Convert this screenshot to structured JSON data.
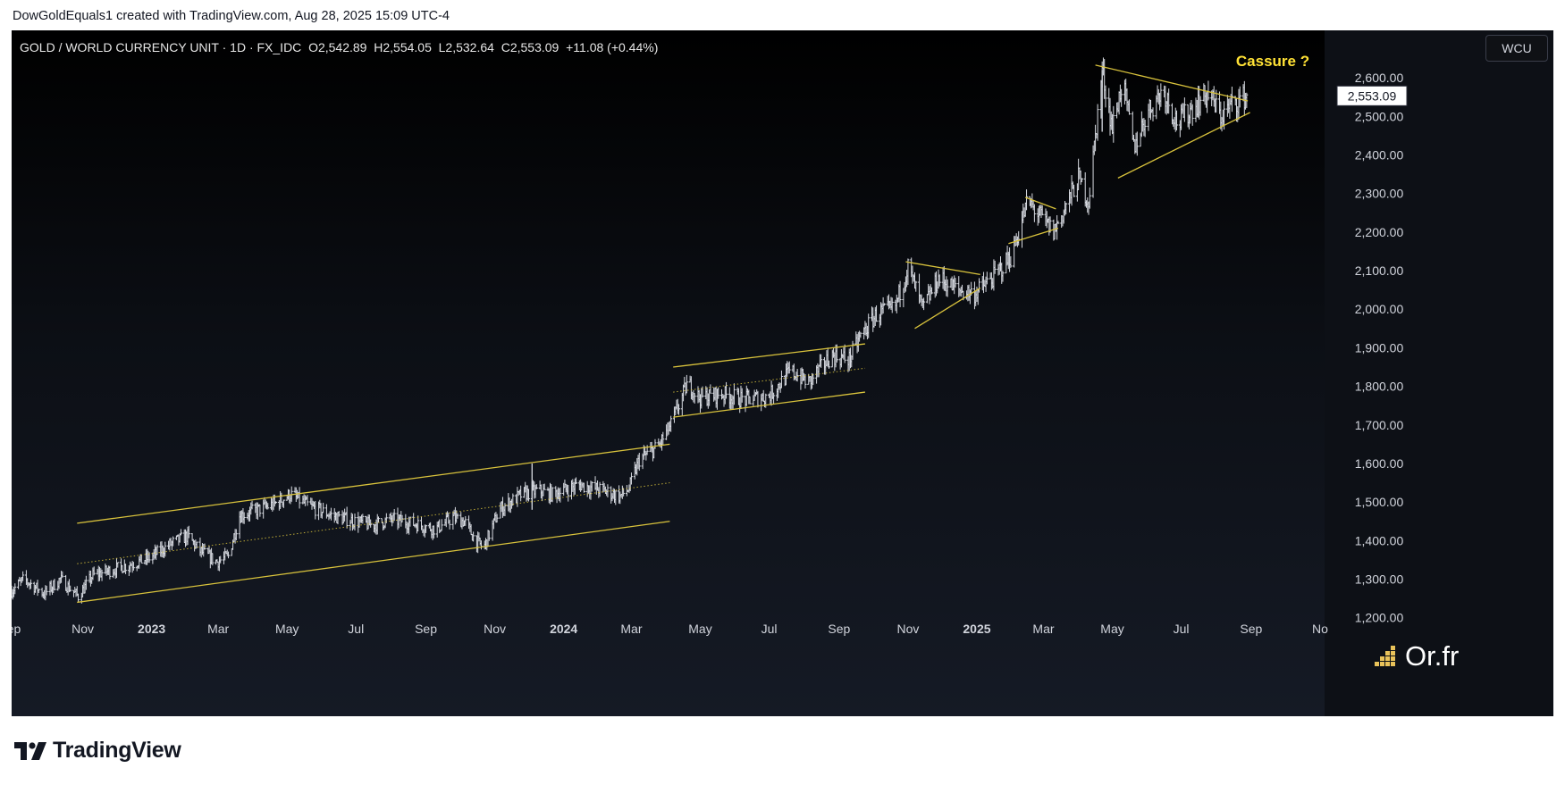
{
  "header": {
    "credit": "DowGoldEquals1 created with TradingView.com, Aug 28, 2025 15:09 UTC-4"
  },
  "symbol": {
    "name": "GOLD / WORLD CURRENCY UNIT · 1D · FX_IDC",
    "open": "O2,542.89",
    "high": "H2,554.05",
    "low": "L2,532.64",
    "close": "C2,553.09",
    "change": "+11.08 (+0.44%)"
  },
  "currency_button": "WCU",
  "annotation": "Cassure ?",
  "watermark": "Or.fr",
  "brand": "TradingView",
  "colors": {
    "trendlines": "#d8c23c",
    "bars": "#d8dbe2",
    "annotation": "#ffe135",
    "background": "#0c0f15"
  },
  "chart_data": {
    "type": "ohlc",
    "title": "GOLD / WORLD CURRENCY UNIT · 1D · FX_IDC",
    "x_ticks": [
      {
        "date": "2022-09-01",
        "label": "ep"
      },
      {
        "date": "2022-11-01",
        "label": "Nov"
      },
      {
        "date": "2023-01-01",
        "label": "2023"
      },
      {
        "date": "2023-03-01",
        "label": "Mar"
      },
      {
        "date": "2023-05-01",
        "label": "May"
      },
      {
        "date": "2023-07-01",
        "label": "Jul"
      },
      {
        "date": "2023-09-01",
        "label": "Sep"
      },
      {
        "date": "2023-11-01",
        "label": "Nov"
      },
      {
        "date": "2024-01-01",
        "label": "2024"
      },
      {
        "date": "2024-03-01",
        "label": "Mar"
      },
      {
        "date": "2024-05-01",
        "label": "May"
      },
      {
        "date": "2024-07-01",
        "label": "Jul"
      },
      {
        "date": "2024-09-01",
        "label": "Sep"
      },
      {
        "date": "2024-11-01",
        "label": "Nov"
      },
      {
        "date": "2025-01-01",
        "label": "2025"
      },
      {
        "date": "2025-03-01",
        "label": "Mar"
      },
      {
        "date": "2025-05-01",
        "label": "May"
      },
      {
        "date": "2025-07-01",
        "label": "Jul"
      },
      {
        "date": "2025-09-01",
        "label": "Sep"
      },
      {
        "date": "2025-11-01",
        "label": "No"
      }
    ],
    "y_ticks": [
      "1,200.00",
      "1,300.00",
      "1,400.00",
      "1,500.00",
      "1,600.00",
      "1,700.00",
      "1,800.00",
      "1,900.00",
      "2,000.00",
      "2,100.00",
      "2,200.00",
      "2,300.00",
      "2,400.00",
      "2,500.00",
      "2,600.00"
    ],
    "ylim": [
      1160,
      2665
    ],
    "xlim": [
      "2022-08-30",
      "2025-11-05"
    ],
    "last_price_label": "2,553.09",
    "last_price": 2553.09,
    "price_path": [
      [
        "2022-08-30",
        1270
      ],
      [
        "2022-09-10",
        1300
      ],
      [
        "2022-09-28",
        1262
      ],
      [
        "2022-10-12",
        1300
      ],
      [
        "2022-10-28",
        1255
      ],
      [
        "2022-11-10",
        1310
      ],
      [
        "2022-11-28",
        1325
      ],
      [
        "2022-12-15",
        1340
      ],
      [
        "2022-12-30",
        1355
      ],
      [
        "2023-01-20",
        1395
      ],
      [
        "2023-02-02",
        1412
      ],
      [
        "2023-02-12",
        1375
      ],
      [
        "2023-02-28",
        1345
      ],
      [
        "2023-03-10",
        1360
      ],
      [
        "2023-03-20",
        1465
      ],
      [
        "2023-04-05",
        1480
      ],
      [
        "2023-04-20",
        1495
      ],
      [
        "2023-05-04",
        1520
      ],
      [
        "2023-05-20",
        1490
      ],
      [
        "2023-06-10",
        1465
      ],
      [
        "2023-06-30",
        1450
      ],
      [
        "2023-07-15",
        1440
      ],
      [
        "2023-08-01",
        1455
      ],
      [
        "2023-08-20",
        1445
      ],
      [
        "2023-09-10",
        1430
      ],
      [
        "2023-09-25",
        1460
      ],
      [
        "2023-10-05",
        1450
      ],
      [
        "2023-10-15",
        1400
      ],
      [
        "2023-10-22",
        1380
      ],
      [
        "2023-11-05",
        1480
      ],
      [
        "2023-11-25",
        1520
      ],
      [
        "2023-12-10",
        1530
      ],
      [
        "2023-12-22",
        1520
      ],
      [
        "2024-01-15",
        1545
      ],
      [
        "2024-02-05",
        1530
      ],
      [
        "2024-02-20",
        1515
      ],
      [
        "2024-02-28",
        1535
      ],
      [
        "2024-03-08",
        1610
      ],
      [
        "2024-03-25",
        1645
      ],
      [
        "2024-04-05",
        1700
      ],
      [
        "2024-04-20",
        1810
      ],
      [
        "2024-04-30",
        1770
      ],
      [
        "2024-05-20",
        1780
      ],
      [
        "2024-06-10",
        1765
      ],
      [
        "2024-07-01",
        1775
      ],
      [
        "2024-07-20",
        1840
      ],
      [
        "2024-08-05",
        1810
      ],
      [
        "2024-08-25",
        1880
      ],
      [
        "2024-09-10",
        1870
      ],
      [
        "2024-09-20",
        1930
      ],
      [
        "2024-10-05",
        1990
      ],
      [
        "2024-10-20",
        2000
      ],
      [
        "2024-11-01",
        2110
      ],
      [
        "2024-11-14",
        2000
      ],
      [
        "2024-11-28",
        2080
      ],
      [
        "2024-12-15",
        2050
      ],
      [
        "2024-12-30",
        2040
      ],
      [
        "2025-01-15",
        2080
      ],
      [
        "2025-02-01",
        2140
      ],
      [
        "2025-02-15",
        2280
      ],
      [
        "2025-03-01",
        2230
      ],
      [
        "2025-03-10",
        2200
      ],
      [
        "2025-03-20",
        2260
      ],
      [
        "2025-04-01",
        2340
      ],
      [
        "2025-04-10",
        2280
      ],
      [
        "2025-04-22",
        2620
      ],
      [
        "2025-05-01",
        2470
      ],
      [
        "2025-05-10",
        2590
      ],
      [
        "2025-05-20",
        2420
      ],
      [
        "2025-06-01",
        2510
      ],
      [
        "2025-06-15",
        2570
      ],
      [
        "2025-06-28",
        2480
      ],
      [
        "2025-07-10",
        2520
      ],
      [
        "2025-07-25",
        2560
      ],
      [
        "2025-08-05",
        2500
      ],
      [
        "2025-08-15",
        2530
      ],
      [
        "2025-08-28",
        2553
      ]
    ],
    "spikes": [
      [
        "2023-12-04",
        1600,
        1480
      ],
      [
        "2025-04-22",
        2620,
        2460
      ]
    ],
    "trendlines": [
      {
        "name": "channel-upper-1",
        "from": [
          "2022-10-27",
          1445
        ],
        "to": [
          "2024-04-04",
          1650
        ]
      },
      {
        "name": "channel-lower-1",
        "from": [
          "2022-10-27",
          1240
        ],
        "to": [
          "2024-04-04",
          1450
        ]
      },
      {
        "name": "channel-mid-1",
        "from": [
          "2022-10-27",
          1340
        ],
        "to": [
          "2024-04-04",
          1550
        ],
        "dotted": true
      },
      {
        "name": "channel-upper-2",
        "from": [
          "2024-04-07",
          1850
        ],
        "to": [
          "2024-09-24",
          1910
        ]
      },
      {
        "name": "channel-lower-2",
        "from": [
          "2024-04-07",
          1720
        ],
        "to": [
          "2024-09-24",
          1785
        ]
      },
      {
        "name": "channel-mid-2",
        "from": [
          "2024-04-07",
          1785
        ],
        "to": [
          "2024-09-24",
          1847
        ],
        "dotted": true
      },
      {
        "name": "triangle-1-upper",
        "from": [
          "2024-10-30",
          2123
        ],
        "to": [
          "2025-01-04",
          2090
        ]
      },
      {
        "name": "triangle-1-lower",
        "from": [
          "2024-11-07",
          1950
        ],
        "to": [
          "2025-01-04",
          2055
        ]
      },
      {
        "name": "triangle-2-upper",
        "from": [
          "2025-02-13",
          2290
        ],
        "to": [
          "2025-03-12",
          2260
        ]
      },
      {
        "name": "triangle-2-lower",
        "from": [
          "2025-01-29",
          2170
        ],
        "to": [
          "2025-03-14",
          2210
        ]
      },
      {
        "name": "triangle-3-upper",
        "from": [
          "2025-04-16",
          2633
        ],
        "to": [
          "2025-08-29",
          2540
        ]
      },
      {
        "name": "triangle-3-lower",
        "from": [
          "2025-05-06",
          2340
        ],
        "to": [
          "2025-08-31",
          2510
        ]
      }
    ]
  }
}
